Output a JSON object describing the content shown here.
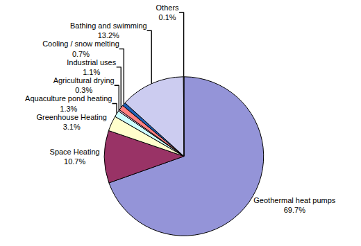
{
  "chart_data": {
    "type": "pie",
    "categories": [
      "Geothermal heat pumps",
      "Space Heating",
      "Greenhouse Heating",
      "Aquaculture pond heating",
      "Agricultural drying",
      "Industrial uses",
      "Cooling / snow melting",
      "Bathing and swimming",
      "Others"
    ],
    "values": [
      69.7,
      10.7,
      3.1,
      1.3,
      0.3,
      1.1,
      0.7,
      13.2,
      0.1
    ],
    "value_labels": [
      "69.7%",
      "10.7%",
      "3.1%",
      "1.3%",
      "0.3%",
      "1.1%",
      "0.7%",
      "13.2%",
      "0.1%"
    ],
    "colors": [
      "#9494d8",
      "#993366",
      "#ffffcc",
      "#ccffff",
      "#ffccee",
      "#ff8080",
      "#1f5fb4",
      "#ccccf0",
      "#ffffff"
    ],
    "data_labels": true
  }
}
